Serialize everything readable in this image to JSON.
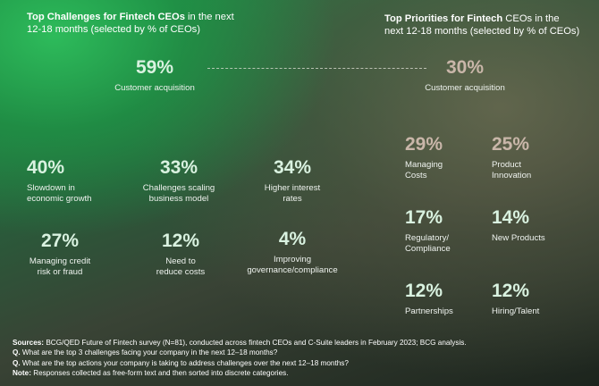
{
  "chart_data": [
    {
      "type": "table",
      "title_bold": "Top Challenges for Fintech CEOs",
      "title_rest_line1": " in the next",
      "title_line2": "12-18 months (selected by % of CEOs)",
      "items": [
        {
          "value": "59%",
          "label_lines": [
            "Customer acquisition"
          ]
        },
        {
          "value": "40%",
          "label_lines": [
            "Slowdown in",
            "economic growth"
          ]
        },
        {
          "value": "33%",
          "label_lines": [
            "Challenges scaling",
            "business model"
          ]
        },
        {
          "value": "34%",
          "label_lines": [
            "Higher interest",
            "rates"
          ]
        },
        {
          "value": "27%",
          "label_lines": [
            "Managing credit",
            "risk or fraud"
          ]
        },
        {
          "value": "12%",
          "label_lines": [
            "Need to",
            "reduce costs"
          ]
        },
        {
          "value": "4%",
          "label_lines": [
            "Improving",
            "governance/compliance"
          ]
        }
      ]
    },
    {
      "type": "table",
      "title_bold": "Top Priorities for Fintech",
      "title_rest_line1": " CEOs in the",
      "title_line2": "next 12-18 months (selected by % of CEOs)",
      "items": [
        {
          "value": "30%",
          "label_lines": [
            "Customer acquisition"
          ]
        },
        {
          "value": "29%",
          "label_lines": [
            "Managing",
            "Costs"
          ]
        },
        {
          "value": "25%",
          "label_lines": [
            "Product",
            "Innovation"
          ]
        },
        {
          "value": "17%",
          "label_lines": [
            "Regulatory/",
            "Compliance"
          ]
        },
        {
          "value": "14%",
          "label_lines": [
            "New Products"
          ]
        },
        {
          "value": "12%",
          "label_lines": [
            "Partnerships"
          ]
        },
        {
          "value": "12%",
          "label_lines": [
            "Hiring/Talent"
          ]
        }
      ]
    }
  ],
  "footnotes": {
    "sources_label": "Sources:",
    "sources_text": " BCG/QED Future of Fintech survey (N=81), conducted across fintech CEOs and C-Suite leaders in February 2023; BCG analysis.",
    "q1_label": "Q.",
    "q1_text": " What are the top 3 challenges facing your company in the next 12–18 months?",
    "q2_label": "Q.",
    "q2_text": " What are the top actions your company is taking to address challenges over the next 12–18 months?",
    "note_label": "Note:",
    "note_text": " Responses collected as free-form text and then sorted into discrete categories."
  }
}
